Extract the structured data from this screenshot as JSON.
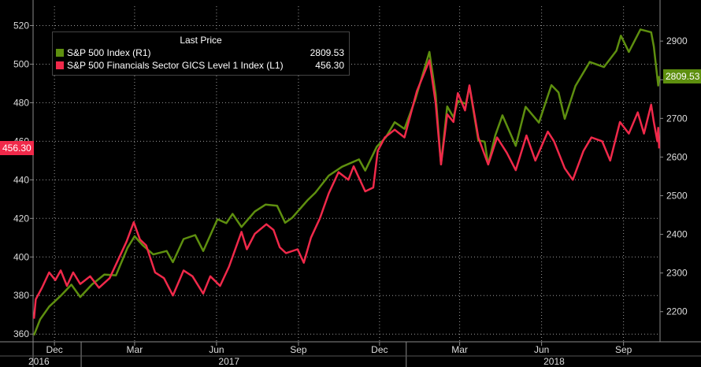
{
  "chart_data": {
    "type": "line",
    "legend": {
      "header": "Last Price",
      "placement": "top-left",
      "entries": [
        {
          "label": "S&P 500 Index  (R1)",
          "value": "2809.53",
          "color": "#5e8f0f"
        },
        {
          "label": "S&P 500 Financials Sector GICS Level 1 Index  (L1)",
          "value": "456.30",
          "color": "#f0294a"
        }
      ]
    },
    "left_axis": {
      "ylim": [
        356,
        530
      ],
      "ticks": [
        "360",
        "380",
        "400",
        "420",
        "440",
        "460",
        "480",
        "500",
        "520"
      ],
      "last_label": "456.30"
    },
    "right_axis": {
      "ylim": [
        2122,
        2990
      ],
      "ticks": [
        "2200",
        "2300",
        "2400",
        "2500",
        "2600",
        "2700",
        "2800",
        "2900"
      ],
      "last_label": "2809.53"
    },
    "x_axis": {
      "xlim": [
        "2016-11-07",
        "2018-10-12"
      ],
      "month_ticks": [
        {
          "date": "2016-12-01",
          "label": "Dec"
        },
        {
          "date": "2017-03-01",
          "label": "Mar"
        },
        {
          "date": "2017-06-01",
          "label": "Jun"
        },
        {
          "date": "2017-09-01",
          "label": "Sep"
        },
        {
          "date": "2017-12-01",
          "label": "Dec"
        },
        {
          "date": "2018-03-01",
          "label": "Mar"
        },
        {
          "date": "2018-06-01",
          "label": "Jun"
        },
        {
          "date": "2018-09-01",
          "label": "Sep"
        }
      ],
      "year_labels": [
        {
          "date": "2016-11-08",
          "label": "2016"
        },
        {
          "date": "2017-06-15",
          "label": "2017"
        },
        {
          "date": "2018-06-15",
          "label": "2018"
        }
      ],
      "year_dividers": [
        "2016-12-31",
        "2017-12-31"
      ]
    },
    "grid": true,
    "series": [
      {
        "name": "S&P 500 Index  (R1)",
        "axis": "right",
        "color": "#5e8f0f",
        "points": [
          [
            "2016-11-08",
            2139
          ],
          [
            "2016-11-15",
            2180
          ],
          [
            "2016-11-25",
            2213
          ],
          [
            "2016-12-08",
            2241
          ],
          [
            "2016-12-20",
            2270
          ],
          [
            "2016-12-30",
            2238
          ],
          [
            "2017-01-12",
            2270
          ],
          [
            "2017-01-26",
            2296
          ],
          [
            "2017-02-08",
            2294
          ],
          [
            "2017-02-21",
            2365
          ],
          [
            "2017-03-01",
            2395
          ],
          [
            "2017-03-10",
            2372
          ],
          [
            "2017-03-22",
            2348
          ],
          [
            "2017-04-06",
            2357
          ],
          [
            "2017-04-13",
            2328
          ],
          [
            "2017-04-25",
            2388
          ],
          [
            "2017-05-08",
            2398
          ],
          [
            "2017-05-17",
            2357
          ],
          [
            "2017-06-02",
            2439
          ],
          [
            "2017-06-12",
            2429
          ],
          [
            "2017-06-19",
            2453
          ],
          [
            "2017-06-29",
            2419
          ],
          [
            "2017-07-14",
            2459
          ],
          [
            "2017-07-26",
            2477
          ],
          [
            "2017-08-08",
            2474
          ],
          [
            "2017-08-17",
            2430
          ],
          [
            "2017-08-25",
            2443
          ],
          [
            "2017-09-11",
            2488
          ],
          [
            "2017-09-20",
            2508
          ],
          [
            "2017-10-05",
            2552
          ],
          [
            "2017-10-20",
            2575
          ],
          [
            "2017-11-08",
            2594
          ],
          [
            "2017-11-15",
            2565
          ],
          [
            "2017-11-28",
            2627
          ],
          [
            "2017-12-08",
            2651
          ],
          [
            "2017-12-18",
            2690
          ],
          [
            "2017-12-29",
            2673
          ],
          [
            "2018-01-10",
            2748
          ],
          [
            "2018-01-26",
            2872
          ],
          [
            "2018-02-02",
            2762
          ],
          [
            "2018-02-08",
            2581
          ],
          [
            "2018-02-15",
            2731
          ],
          [
            "2018-02-22",
            2703
          ],
          [
            "2018-02-27",
            2745
          ],
          [
            "2018-03-08",
            2738
          ],
          [
            "2018-03-12",
            2783
          ],
          [
            "2018-03-22",
            2643
          ],
          [
            "2018-03-29",
            2640
          ],
          [
            "2018-04-02",
            2581
          ],
          [
            "2018-04-10",
            2656
          ],
          [
            "2018-04-18",
            2708
          ],
          [
            "2018-05-03",
            2629
          ],
          [
            "2018-05-14",
            2730
          ],
          [
            "2018-05-29",
            2689
          ],
          [
            "2018-06-12",
            2786
          ],
          [
            "2018-06-20",
            2767
          ],
          [
            "2018-06-27",
            2699
          ],
          [
            "2018-07-09",
            2784
          ],
          [
            "2018-07-25",
            2846
          ],
          [
            "2018-08-10",
            2833
          ],
          [
            "2018-08-24",
            2875
          ],
          [
            "2018-08-29",
            2914
          ],
          [
            "2018-09-07",
            2872
          ],
          [
            "2018-09-20",
            2930
          ],
          [
            "2018-10-02",
            2923
          ],
          [
            "2018-10-05",
            2886
          ],
          [
            "2018-10-10",
            2785
          ],
          [
            "2018-10-11",
            2809.53
          ]
        ]
      },
      {
        "name": "S&P 500 Financials Sector GICS Level 1 Index  (L1)",
        "axis": "left",
        "color": "#f0294a",
        "points": [
          [
            "2016-11-08",
            368
          ],
          [
            "2016-11-10",
            378
          ],
          [
            "2016-11-17",
            384
          ],
          [
            "2016-11-25",
            392
          ],
          [
            "2016-12-02",
            388
          ],
          [
            "2016-12-08",
            393
          ],
          [
            "2016-12-15",
            385
          ],
          [
            "2016-12-22",
            392
          ],
          [
            "2016-12-30",
            386
          ],
          [
            "2017-01-10",
            390
          ],
          [
            "2017-01-20",
            384
          ],
          [
            "2017-02-01",
            389
          ],
          [
            "2017-02-10",
            398
          ],
          [
            "2017-02-20",
            408
          ],
          [
            "2017-02-28",
            418
          ],
          [
            "2017-03-07",
            409
          ],
          [
            "2017-03-14",
            406
          ],
          [
            "2017-03-24",
            392
          ],
          [
            "2017-04-03",
            389
          ],
          [
            "2017-04-13",
            380
          ],
          [
            "2017-04-25",
            393
          ],
          [
            "2017-05-05",
            390
          ],
          [
            "2017-05-17",
            381
          ],
          [
            "2017-05-25",
            390
          ],
          [
            "2017-06-05",
            385
          ],
          [
            "2017-06-15",
            395
          ],
          [
            "2017-06-29",
            413
          ],
          [
            "2017-07-05",
            404
          ],
          [
            "2017-07-14",
            412
          ],
          [
            "2017-07-27",
            417
          ],
          [
            "2017-08-04",
            414
          ],
          [
            "2017-08-11",
            405
          ],
          [
            "2017-08-18",
            402
          ],
          [
            "2017-08-31",
            404
          ],
          [
            "2017-09-07",
            397
          ],
          [
            "2017-09-15",
            410
          ],
          [
            "2017-09-25",
            420
          ],
          [
            "2017-10-05",
            433
          ],
          [
            "2017-10-16",
            444
          ],
          [
            "2017-10-27",
            440
          ],
          [
            "2017-11-02",
            447
          ],
          [
            "2017-11-15",
            434
          ],
          [
            "2017-11-24",
            436
          ],
          [
            "2017-11-29",
            455
          ],
          [
            "2017-12-07",
            462
          ],
          [
            "2017-12-18",
            466
          ],
          [
            "2017-12-29",
            462
          ],
          [
            "2018-01-05",
            474
          ],
          [
            "2018-01-12",
            486
          ],
          [
            "2018-01-26",
            502
          ],
          [
            "2018-02-02",
            480
          ],
          [
            "2018-02-08",
            448
          ],
          [
            "2018-02-15",
            474
          ],
          [
            "2018-02-22",
            470
          ],
          [
            "2018-02-27",
            485
          ],
          [
            "2018-03-07",
            476
          ],
          [
            "2018-03-12",
            489
          ],
          [
            "2018-03-22",
            462
          ],
          [
            "2018-04-02",
            448
          ],
          [
            "2018-04-12",
            462
          ],
          [
            "2018-04-23",
            454
          ],
          [
            "2018-05-03",
            445
          ],
          [
            "2018-05-15",
            463
          ],
          [
            "2018-05-25",
            450
          ],
          [
            "2018-06-08",
            465
          ],
          [
            "2018-06-15",
            460
          ],
          [
            "2018-06-27",
            446
          ],
          [
            "2018-07-06",
            440
          ],
          [
            "2018-07-18",
            455
          ],
          [
            "2018-07-27",
            462
          ],
          [
            "2018-08-08",
            460
          ],
          [
            "2018-08-17",
            450
          ],
          [
            "2018-08-28",
            470
          ],
          [
            "2018-09-07",
            464
          ],
          [
            "2018-09-17",
            475
          ],
          [
            "2018-09-24",
            464
          ],
          [
            "2018-10-02",
            479
          ],
          [
            "2018-10-05",
            470
          ],
          [
            "2018-10-09",
            460
          ],
          [
            "2018-10-10",
            467
          ],
          [
            "2018-10-11",
            456.3
          ]
        ]
      }
    ]
  }
}
